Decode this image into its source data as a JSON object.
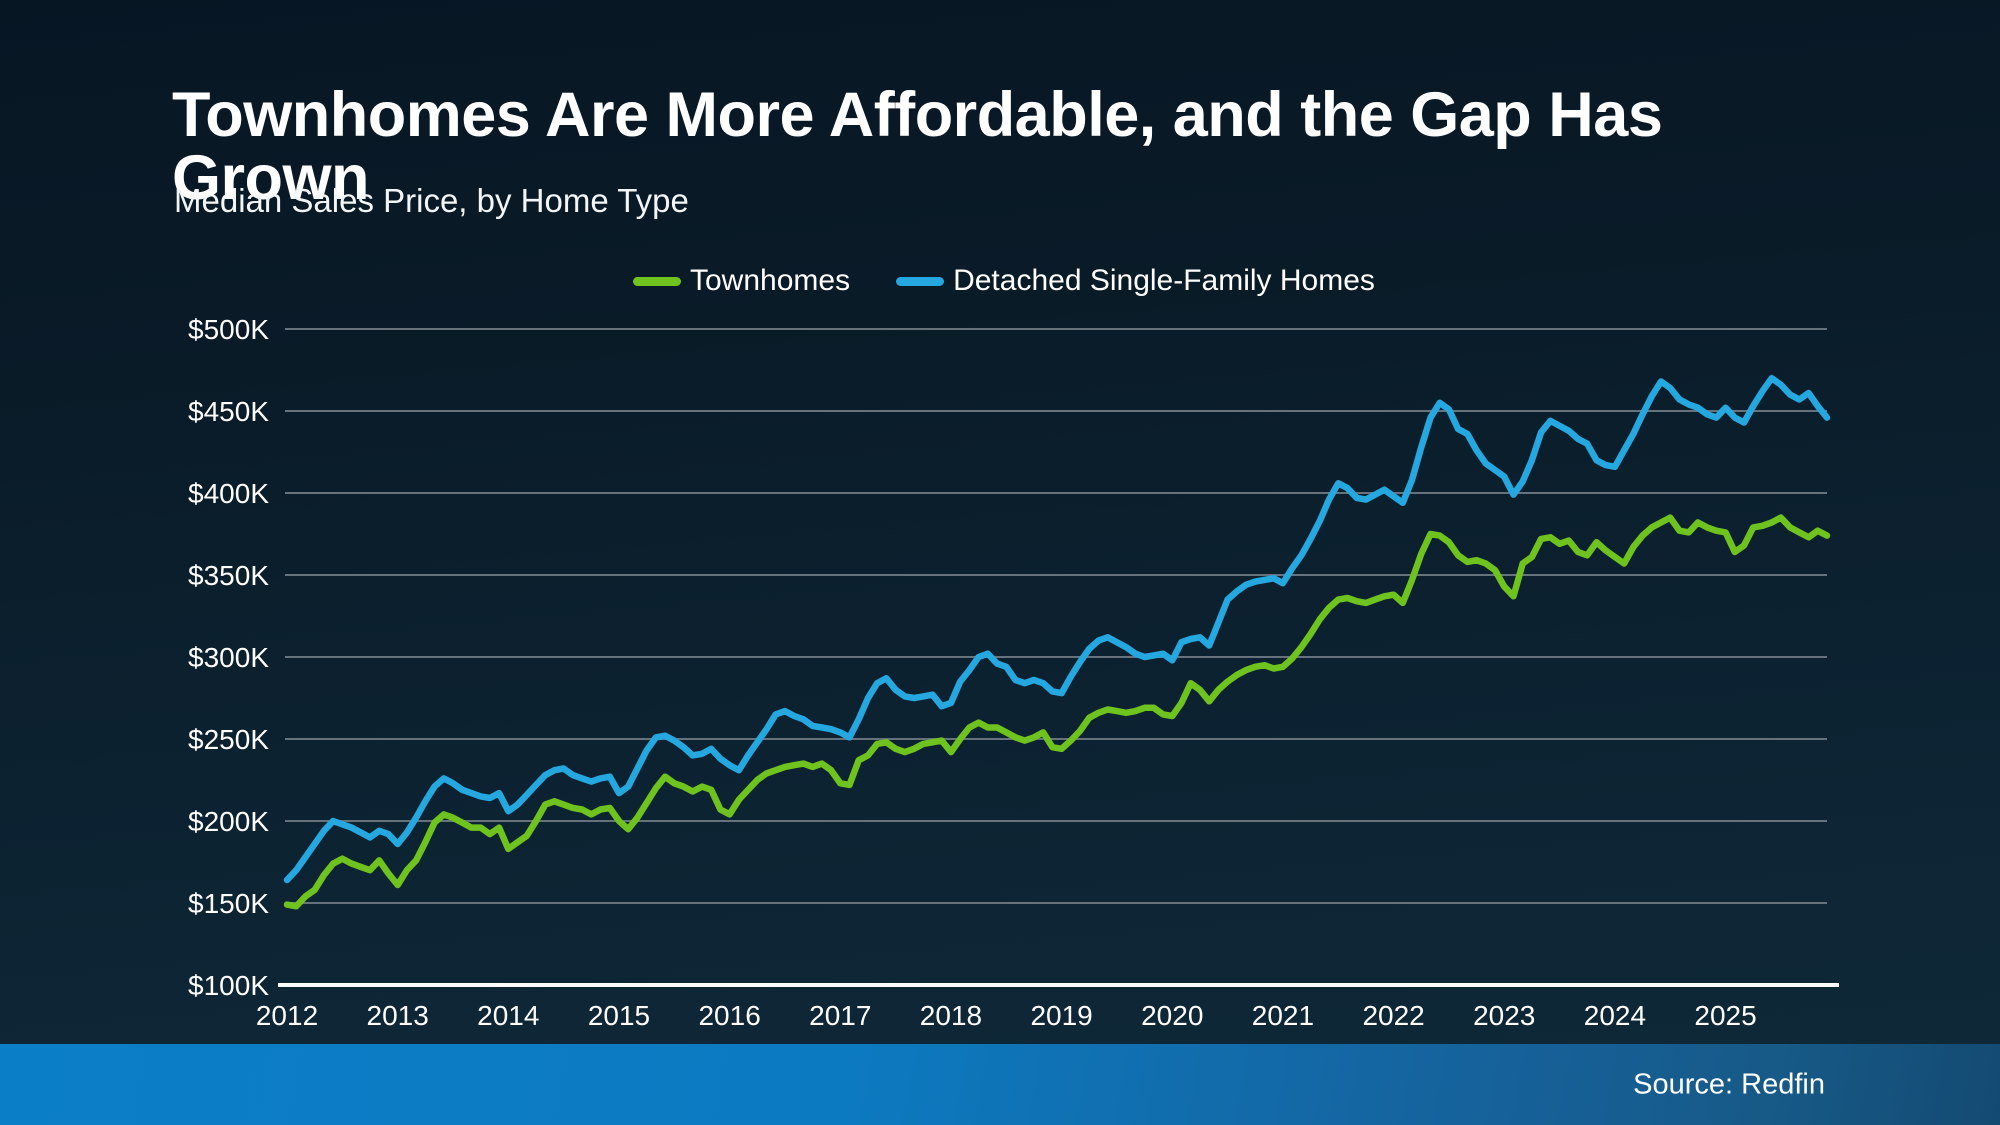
{
  "header": {
    "title": "Townhomes Are More Affordable, and the Gap Has Grown",
    "subtitle": "Median Sales Price, by Home Type"
  },
  "source": {
    "label": "Source: Redfin"
  },
  "colors": {
    "townhomes_line": "#6fc31e",
    "detached_line": "#25a8e0",
    "background_dark": "#0a1b28",
    "bottom_bar_left": "#0b7ec8",
    "bottom_bar_right": "#175a88",
    "gridline": "#66737c",
    "axis": "#ffffff"
  },
  "chart_data": {
    "type": "line",
    "title": "Townhomes Are More Affordable, and the Gap Has Grown",
    "subtitle": "Median Sales Price, by Home Type",
    "xlabel": "",
    "ylabel": "Median Sales Price",
    "unit": "$K (USD thousands)",
    "frequency": "monthly",
    "x_start": "2012-01",
    "x_end": "2025-12",
    "ylim": [
      100,
      500
    ],
    "grid": "horizontal",
    "legend_position": "top",
    "x_ticks": [
      "2012",
      "2013",
      "2014",
      "2015",
      "2016",
      "2017",
      "2018",
      "2019",
      "2020",
      "2021",
      "2022",
      "2023",
      "2024",
      "2025"
    ],
    "y_ticks": [
      {
        "label": "$100K",
        "value": 100
      },
      {
        "label": "$150K",
        "value": 150
      },
      {
        "label": "$200K",
        "value": 200
      },
      {
        "label": "$250K",
        "value": 250
      },
      {
        "label": "$300K",
        "value": 300
      },
      {
        "label": "$350K",
        "value": 350
      },
      {
        "label": "$400K",
        "value": 400
      },
      {
        "label": "$450K",
        "value": 450
      },
      {
        "label": "$500K",
        "value": 500
      }
    ],
    "series": [
      {
        "name": "Townhomes",
        "color": "#6fc31e",
        "values": [
          149,
          148,
          154,
          158,
          167,
          174,
          177,
          174,
          172,
          170,
          176,
          168,
          161,
          170,
          176,
          187,
          199,
          204,
          202,
          199,
          196,
          196,
          192,
          196,
          183,
          187,
          191,
          200,
          210,
          212,
          210,
          208,
          207,
          204,
          207,
          208,
          200,
          195,
          202,
          211,
          220,
          227,
          223,
          221,
          218,
          221,
          219,
          207,
          204,
          213,
          219,
          225,
          229,
          231,
          233,
          234,
          235,
          233,
          235,
          231,
          223,
          222,
          237,
          240,
          247,
          248,
          244,
          242,
          244,
          247,
          248,
          249,
          242,
          250,
          257,
          260,
          257,
          257,
          254,
          251,
          249,
          251,
          254,
          245,
          244,
          249,
          255,
          263,
          266,
          268,
          267,
          266,
          267,
          269,
          269,
          265,
          264,
          272,
          284,
          280,
          273,
          280,
          285,
          289,
          292,
          294,
          295,
          293,
          294,
          299,
          306,
          314,
          323,
          330,
          335,
          336,
          334,
          333,
          335,
          337,
          338,
          333,
          347,
          363,
          375,
          374,
          370,
          362,
          358,
          359,
          357,
          353,
          343,
          337,
          357,
          361,
          372,
          373,
          369,
          371,
          364,
          362,
          370,
          365,
          361,
          357,
          367,
          374,
          379,
          382,
          385,
          377,
          376,
          382,
          379,
          377,
          376,
          364,
          368,
          379,
          380,
          382,
          385,
          379,
          376,
          373,
          377,
          374
        ]
      },
      {
        "name": "Detached Single-Family Homes",
        "color": "#25a8e0",
        "values": [
          164,
          170,
          178,
          186,
          194,
          200,
          198,
          196,
          193,
          190,
          194,
          192,
          186,
          193,
          202,
          212,
          221,
          226,
          223,
          219,
          217,
          215,
          214,
          217,
          206,
          210,
          216,
          222,
          228,
          231,
          232,
          228,
          226,
          224,
          226,
          227,
          217,
          221,
          232,
          243,
          251,
          252,
          249,
          245,
          240,
          241,
          244,
          238,
          234,
          231,
          240,
          248,
          256,
          265,
          267,
          264,
          262,
          258,
          257,
          256,
          254,
          251,
          262,
          275,
          284,
          287,
          280,
          276,
          275,
          276,
          277,
          270,
          272,
          285,
          292,
          300,
          302,
          296,
          294,
          286,
          284,
          286,
          284,
          279,
          278,
          288,
          297,
          305,
          310,
          312,
          309,
          306,
          302,
          300,
          301,
          302,
          298,
          309,
          311,
          312,
          307,
          321,
          335,
          340,
          344,
          346,
          347,
          348,
          345,
          354,
          362,
          372,
          383,
          396,
          406,
          403,
          397,
          396,
          399,
          402,
          398,
          394,
          408,
          428,
          446,
          455,
          451,
          439,
          436,
          426,
          418,
          414,
          410,
          399,
          407,
          420,
          437,
          444,
          441,
          438,
          433,
          430,
          420,
          417,
          416,
          426,
          436,
          448,
          459,
          468,
          464,
          457,
          454,
          452,
          448,
          446,
          452,
          446,
          443,
          453,
          462,
          470,
          466,
          460,
          457,
          461,
          453,
          446
        ]
      }
    ]
  }
}
